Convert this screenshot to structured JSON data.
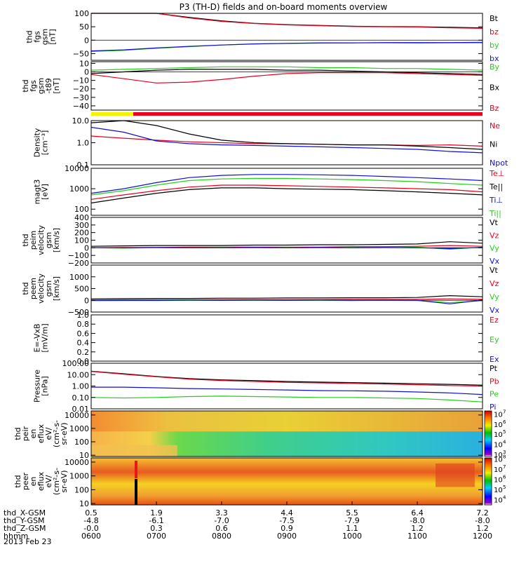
{
  "title": "P3 (TH-D) fields and on-board moments overview",
  "date_label": "2013 Feb 23",
  "time_axis": {
    "row_labels": [
      "thd_X-GSM",
      "thd_Y-GSM",
      "thd_Z-GSM",
      "hhmm"
    ],
    "columns": [
      {
        "time": "0600",
        "x": "0.5",
        "y": "-4.8",
        "z": "-0.0"
      },
      {
        "time": "0700",
        "x": "1.9",
        "y": "-6.1",
        "z": "0.3"
      },
      {
        "time": "0800",
        "x": "3.3",
        "y": "-7.0",
        "z": "0.6"
      },
      {
        "time": "0900",
        "x": "4.4",
        "y": "-7.5",
        "z": "0.9"
      },
      {
        "time": "1000",
        "x": "5.5",
        "y": "-7.9",
        "z": "1.1"
      },
      {
        "time": "1100",
        "x": "6.4",
        "y": "-8.0",
        "z": "1.2"
      },
      {
        "time": "1200",
        "x": "7.2",
        "y": "-8.0",
        "z": "1.2"
      }
    ]
  },
  "colors": {
    "black": "#000000",
    "red": "#e8001c",
    "green": "#22d01a",
    "blue": "#1010d0",
    "yellow": "#f4f400"
  },
  "chart_data": [
    {
      "type": "line",
      "ylabel": [
        "thd",
        "fgs",
        "gsm",
        "[nT]"
      ],
      "ylim": [
        -75,
        100
      ],
      "yticks": [
        100,
        50,
        0,
        -50
      ],
      "ytick_labels": [
        "100",
        "50",
        "0",
        "−50"
      ],
      "zero_line": true,
      "x_hours": [
        6.0,
        6.5,
        7.0,
        7.5,
        8.0,
        8.5,
        9.0,
        9.5,
        10.0,
        10.5,
        11.0,
        11.5,
        12.0
      ],
      "series": [
        {
          "name": "Bt",
          "color": "#000000",
          "values": [
            130,
            125,
            105,
            85,
            72,
            63,
            58,
            55,
            52,
            51,
            50,
            48,
            46
          ]
        },
        {
          "name": "bz",
          "color": "#e8001c",
          "values": [
            128,
            123,
            103,
            83,
            70,
            62,
            57,
            54,
            51,
            50,
            49,
            46,
            44
          ]
        },
        {
          "name": "by",
          "color": "#22d01a",
          "values": [
            -42,
            -38,
            -30,
            -24,
            -18,
            -14,
            -12,
            -11,
            -10,
            -10,
            -11,
            -10,
            -10
          ]
        },
        {
          "name": "bx",
          "color": "#1010d0",
          "values": [
            -40,
            -36,
            -29,
            -23,
            -18,
            -14,
            -12,
            -10,
            -10,
            -9,
            -9,
            -9,
            -8
          ]
        }
      ]
    },
    {
      "type": "line",
      "ylabel": [
        "thd",
        "fgs",
        "gsm",
        "-t89",
        "[nT]"
      ],
      "ylim": [
        -45,
        12
      ],
      "yticks": [
        10,
        0,
        -10,
        -20,
        -30,
        -40
      ],
      "ytick_labels": [
        "10",
        "0",
        "−10",
        "−20",
        "−30",
        "−40"
      ],
      "zero_line": true,
      "x_hours": [
        6.0,
        6.5,
        7.0,
        7.5,
        8.0,
        8.5,
        9.0,
        9.5,
        10.0,
        10.5,
        11.0,
        11.5,
        12.0
      ],
      "series": [
        {
          "name": "By",
          "color": "#22d01a",
          "values": [
            2,
            3,
            4,
            5,
            6,
            6,
            6,
            5,
            5,
            4,
            4,
            3,
            2
          ]
        },
        {
          "name": "Bx",
          "color": "#000000",
          "values": [
            -2,
            0,
            2,
            3,
            3,
            3,
            2,
            2,
            1,
            0,
            -1,
            -2,
            -3
          ]
        },
        {
          "name": "Bz",
          "color": "#e8001c",
          "values": [
            -3,
            -8,
            -13,
            -12,
            -9,
            -5,
            -2,
            -1,
            -1,
            -1,
            -2,
            -3,
            -4
          ]
        }
      ]
    },
    {
      "type": "line",
      "ylabel": [
        "Density",
        "[cm⁻³]"
      ],
      "yscale": "log",
      "ylim": [
        0.1,
        10.0
      ],
      "yticks": [
        10.0,
        1.0,
        0.1
      ],
      "ytick_labels": [
        "10.0",
        "1.0",
        "0.1"
      ],
      "x_hours": [
        6.0,
        6.5,
        7.0,
        7.5,
        8.0,
        8.5,
        9.0,
        9.5,
        10.0,
        10.5,
        11.0,
        11.5,
        12.0
      ],
      "series": [
        {
          "name": "Ne",
          "color": "#e8001c",
          "values": [
            2.0,
            1.6,
            1.3,
            1.1,
            1.0,
            0.9,
            0.9,
            0.85,
            0.8,
            0.8,
            0.75,
            0.8,
            0.7
          ]
        },
        {
          "name": "Ni",
          "color": "#000000",
          "values": [
            8.0,
            14.0,
            6.0,
            2.5,
            1.3,
            1.0,
            0.9,
            0.85,
            0.8,
            0.8,
            0.7,
            0.6,
            0.5
          ]
        },
        {
          "name": "Npot",
          "color": "#1010d0",
          "values": [
            5.0,
            3.0,
            1.2,
            0.9,
            0.8,
            0.75,
            0.7,
            0.65,
            0.6,
            0.55,
            0.5,
            0.4,
            0.35
          ]
        }
      ]
    },
    {
      "type": "line",
      "ylabel": [
        "magt3",
        "[eV]"
      ],
      "yscale": "log",
      "ylim": [
        50,
        10000
      ],
      "yticks": [
        10000,
        1000,
        100
      ],
      "ytick_labels": [
        "10000",
        "1000",
        "100"
      ],
      "x_hours": [
        6.0,
        6.5,
        7.0,
        7.5,
        8.0,
        8.5,
        9.0,
        9.5,
        10.0,
        10.5,
        11.0,
        11.5,
        12.0
      ],
      "series": [
        {
          "name": "Te⊥",
          "color": "#e8001c",
          "values": [
            300,
            500,
            800,
            1200,
            1500,
            1500,
            1400,
            1300,
            1200,
            1100,
            1000,
            900,
            700
          ]
        },
        {
          "name": "Te||",
          "color": "#000000",
          "values": [
            200,
            350,
            600,
            900,
            1100,
            1100,
            1000,
            950,
            900,
            800,
            700,
            600,
            500
          ]
        },
        {
          "name": "Ti⊥",
          "color": "#1010d0",
          "values": [
            600,
            1000,
            2000,
            3500,
            4500,
            5000,
            5000,
            4800,
            4500,
            4000,
            3500,
            3000,
            2500
          ]
        },
        {
          "name": "Ti||",
          "color": "#22d01a",
          "values": [
            500,
            800,
            1500,
            2500,
            3000,
            3200,
            3200,
            3000,
            2800,
            2500,
            2200,
            1800,
            1500
          ]
        }
      ]
    },
    {
      "type": "line",
      "ylabel": [
        "thd",
        "peim",
        "velocity",
        "gsm",
        "[km/s]"
      ],
      "ylim": [
        -200,
        400
      ],
      "yticks": [
        400,
        300,
        200,
        100,
        0,
        -100,
        -200
      ],
      "ytick_labels": [
        "400",
        "300",
        "200",
        "100",
        "0",
        "−100",
        "−200"
      ],
      "zero_line": true,
      "x_hours": [
        6.0,
        6.5,
        7.0,
        7.5,
        8.0,
        8.5,
        9.0,
        9.5,
        10.0,
        10.5,
        11.0,
        11.5,
        12.0
      ],
      "series": [
        {
          "name": "Vt",
          "color": "#000000",
          "values": [
            20,
            25,
            30,
            30,
            30,
            35,
            35,
            40,
            40,
            45,
            50,
            80,
            60
          ]
        },
        {
          "name": "Vz",
          "color": "#e8001c",
          "values": [
            0,
            5,
            5,
            10,
            10,
            10,
            10,
            10,
            15,
            15,
            20,
            30,
            20
          ]
        },
        {
          "name": "Vy",
          "color": "#22d01a",
          "values": [
            0,
            -5,
            0,
            0,
            5,
            0,
            5,
            0,
            5,
            0,
            10,
            -20,
            10
          ]
        },
        {
          "name": "Vx",
          "color": "#1010d0",
          "values": [
            0,
            0,
            5,
            0,
            0,
            5,
            0,
            5,
            0,
            5,
            0,
            -10,
            5
          ]
        }
      ]
    },
    {
      "type": "line",
      "ylabel": [
        "thd",
        "peem",
        "velocity",
        "gsm",
        "[km/s]"
      ],
      "ylim": [
        -500,
        1500
      ],
      "yticks": [
        1000,
        500,
        0,
        -500
      ],
      "ytick_labels": [
        "1000",
        "500",
        "0",
        "−500"
      ],
      "zero_line": true,
      "x_hours": [
        6.0,
        6.5,
        7.0,
        7.5,
        8.0,
        8.5,
        9.0,
        9.5,
        10.0,
        10.5,
        11.0,
        11.5,
        12.0
      ],
      "series": [
        {
          "name": "Vt",
          "color": "#000000",
          "values": [
            60,
            70,
            80,
            80,
            90,
            90,
            100,
            100,
            110,
            110,
            120,
            200,
            150
          ]
        },
        {
          "name": "Vz",
          "color": "#e8001c",
          "values": [
            10,
            20,
            20,
            20,
            30,
            30,
            30,
            30,
            40,
            40,
            40,
            60,
            40
          ]
        },
        {
          "name": "Vy",
          "color": "#22d01a",
          "values": [
            -20,
            -10,
            -10,
            0,
            0,
            0,
            0,
            0,
            -10,
            0,
            -10,
            -100,
            -20
          ]
        },
        {
          "name": "Vx",
          "color": "#1010d0",
          "values": [
            0,
            0,
            0,
            10,
            0,
            10,
            0,
            10,
            0,
            0,
            0,
            -150,
            10
          ]
        }
      ]
    },
    {
      "type": "line",
      "ylabel": [
        "E=-VxB",
        "[mV/m]"
      ],
      "ylim": [
        0.0,
        1.0
      ],
      "yticks": [
        1.0,
        0.8,
        0.6,
        0.4,
        0.2,
        0.0
      ],
      "ytick_labels": [
        "1.0",
        "0.8",
        "0.6",
        "0.4",
        "0.2",
        "0.0"
      ],
      "x_hours": [],
      "series": [
        {
          "name": "Ez",
          "color": "#e8001c",
          "values": []
        },
        {
          "name": "Ey",
          "color": "#22d01a",
          "values": []
        },
        {
          "name": "Ex",
          "color": "#1010d0",
          "values": []
        }
      ]
    },
    {
      "type": "line",
      "ylabel": [
        "Pressure",
        "[nPa]"
      ],
      "yscale": "log",
      "ylim": [
        0.01,
        100.0
      ],
      "yticks": [
        100.0,
        10.0,
        1.0,
        0.1,
        0.01
      ],
      "ytick_labels": [
        "100.00",
        "10.00",
        "1.00",
        "0.10",
        "0.01"
      ],
      "x_hours": [
        6.0,
        6.5,
        7.0,
        7.5,
        8.0,
        8.5,
        9.0,
        9.5,
        10.0,
        10.5,
        11.0,
        11.5,
        12.0
      ],
      "series": [
        {
          "name": "Pt",
          "color": "#000000",
          "values": [
            20,
            12,
            7,
            4.5,
            3.5,
            3.0,
            2.5,
            2.2,
            2.0,
            1.8,
            1.6,
            1.4,
            1.2
          ]
        },
        {
          "name": "Pb",
          "color": "#e8001c",
          "values": [
            19,
            11,
            6.5,
            4.0,
            3.0,
            2.5,
            2.1,
            1.9,
            1.7,
            1.5,
            1.3,
            1.1,
            1.0
          ]
        },
        {
          "name": "Pe",
          "color": "#22d01a",
          "values": [
            0.1,
            0.09,
            0.1,
            0.12,
            0.13,
            0.12,
            0.11,
            0.1,
            0.1,
            0.09,
            0.08,
            0.06,
            0.04
          ]
        },
        {
          "name": "Pi",
          "color": "#1010d0",
          "values": [
            0.8,
            0.8,
            0.7,
            0.6,
            0.55,
            0.5,
            0.45,
            0.4,
            0.38,
            0.35,
            0.3,
            0.25,
            0.18
          ]
        }
      ]
    },
    {
      "type": "heatmap",
      "ylabel": [
        "thd",
        "peir",
        "en",
        "eflux",
        "eV/",
        "(cm²-s-",
        "sr-eV)"
      ],
      "yscale": "log",
      "ylim": [
        8,
        20000
      ],
      "yticks": [
        10000,
        1000,
        100,
        10
      ],
      "ytick_labels": [
        "10000",
        "1000",
        "100",
        "10"
      ],
      "colorbar_ticks": [
        7,
        6,
        5,
        4,
        3
      ],
      "colorbar_range": [
        2.8,
        7.3
      ]
    },
    {
      "type": "heatmap",
      "ylabel": [
        "thd",
        "peer",
        "en",
        "eflux",
        "eV/",
        "(cm²-s-",
        "sr-eV)"
      ],
      "yscale": "log",
      "ylim": [
        8,
        20000
      ],
      "yticks": [
        10000,
        1000,
        100,
        10
      ],
      "ytick_labels": [
        "10000",
        "1000",
        "100",
        "10"
      ],
      "colorbar_ticks": [
        8,
        7,
        6,
        5,
        4
      ],
      "colorbar_range": [
        3.5,
        8.1
      ]
    }
  ]
}
